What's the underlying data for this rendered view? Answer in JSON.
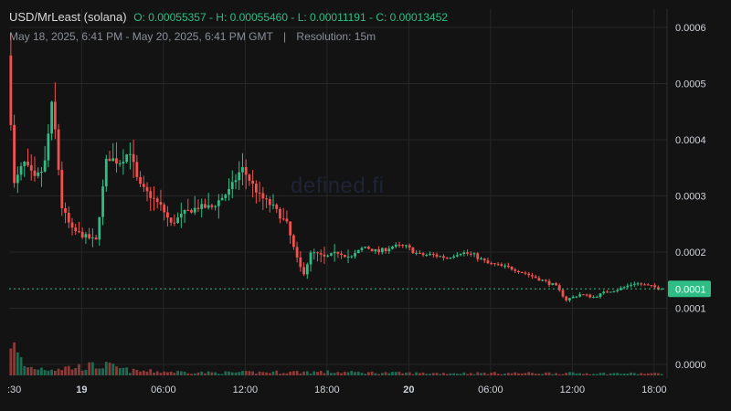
{
  "header": {
    "symbol": "USD/MrLeast (solana)",
    "ohlc": "O: 0.00055357 - H: 0.00055460 - L: 0.00011191 - C: 0.00013452",
    "date_range": "May 18, 2025, 6:41 PM - May 20, 2025, 6:41 PM GMT",
    "separator": "|",
    "resolution": "Resolution: 15m"
  },
  "watermark": "defined.fi",
  "colors": {
    "background": "#131313",
    "grid": "#262626",
    "up": "#2ebd85",
    "down": "#ef5350",
    "price_line": "#2ebd85"
  },
  "chart_data": {
    "type": "candlestick",
    "resolution": "15m",
    "y_ticks": [
      "0.0006",
      "0.0005",
      "0.0004",
      "0.0003",
      "0.0002",
      "0.0001",
      "0.0000"
    ],
    "y_tick_values": [
      0.0006,
      0.0005,
      0.0004,
      0.0003,
      0.0002,
      0.0001,
      0.0
    ],
    "ylim": [
      0.0,
      0.0006
    ],
    "x_ticks": [
      {
        "label": ":30",
        "hours": -0.2,
        "bold": false
      },
      {
        "label": "19",
        "hours": 5.32,
        "bold": true
      },
      {
        "label": "06:00",
        "hours": 11.32,
        "bold": false
      },
      {
        "label": "12:00",
        "hours": 17.32,
        "bold": false
      },
      {
        "label": "18:00",
        "hours": 23.32,
        "bold": false
      },
      {
        "label": "20",
        "hours": 29.32,
        "bold": true
      },
      {
        "label": "06:00",
        "hours": 35.32,
        "bold": false
      },
      {
        "label": "12:00",
        "hours": 41.32,
        "bold": false
      },
      {
        "label": "18:00",
        "hours": 47.32,
        "bold": false
      }
    ],
    "x_range_hours": [
      0,
      48
    ],
    "current_price_label": "0.0001",
    "current_price": 0.00013452,
    "keyframes": [
      [
        0,
        0.00055
      ],
      [
        0.5,
        0.00032
      ],
      [
        1.2,
        0.00036
      ],
      [
        2.0,
        0.00033
      ],
      [
        2.7,
        0.00035
      ],
      [
        3.3,
        0.00047
      ],
      [
        4.0,
        0.00028
      ],
      [
        4.7,
        0.00024
      ],
      [
        5.5,
        0.00023
      ],
      [
        6.5,
        0.00022
      ],
      [
        7.3,
        0.00037
      ],
      [
        8.2,
        0.00036
      ],
      [
        9.0,
        0.00038
      ],
      [
        9.6,
        0.00032
      ],
      [
        10.5,
        0.0003
      ],
      [
        11.3,
        0.00028
      ],
      [
        12.0,
        0.00025
      ],
      [
        13.0,
        0.00027
      ],
      [
        14.0,
        0.00028
      ],
      [
        15.0,
        0.00028
      ],
      [
        16.3,
        0.00031
      ],
      [
        17.2,
        0.00035
      ],
      [
        18.5,
        0.0003
      ],
      [
        19.5,
        0.00028
      ],
      [
        20.5,
        0.00025
      ],
      [
        21.2,
        0.00019
      ],
      [
        21.7,
        0.00016
      ],
      [
        22.3,
        0.0002
      ],
      [
        23.3,
        0.00019
      ],
      [
        24.3,
        0.0002
      ],
      [
        25.2,
        0.00019
      ],
      [
        26.2,
        0.00021
      ],
      [
        27.2,
        0.0002
      ],
      [
        28.2,
        0.00021
      ],
      [
        29.2,
        0.00021
      ],
      [
        30.2,
        0.000195
      ],
      [
        31.2,
        0.000195
      ],
      [
        32.2,
        0.00019
      ],
      [
        33.2,
        0.0002
      ],
      [
        34.2,
        0.000195
      ],
      [
        35.2,
        0.00018
      ],
      [
        36.2,
        0.000175
      ],
      [
        37.2,
        0.00017
      ],
      [
        38.2,
        0.00016
      ],
      [
        39.2,
        0.00015
      ],
      [
        40.2,
        0.00014
      ],
      [
        41.0,
        0.000115
      ],
      [
        42.0,
        0.000125
      ],
      [
        43.0,
        0.00012
      ],
      [
        44.0,
        0.00013
      ],
      [
        45.0,
        0.000135
      ],
      [
        46.0,
        0.000145
      ],
      [
        47.0,
        0.00014
      ],
      [
        48,
        0.0001345
      ]
    ],
    "volume_profile": [
      [
        0,
        1.0
      ],
      [
        0.4,
        0.55
      ],
      [
        1.2,
        0.18
      ],
      [
        3.0,
        0.15
      ],
      [
        7.0,
        0.22
      ],
      [
        9.0,
        0.1
      ],
      [
        15.0,
        0.06
      ],
      [
        22.0,
        0.08
      ],
      [
        30.0,
        0.05
      ],
      [
        40.0,
        0.05
      ],
      [
        48,
        0.04
      ]
    ]
  }
}
